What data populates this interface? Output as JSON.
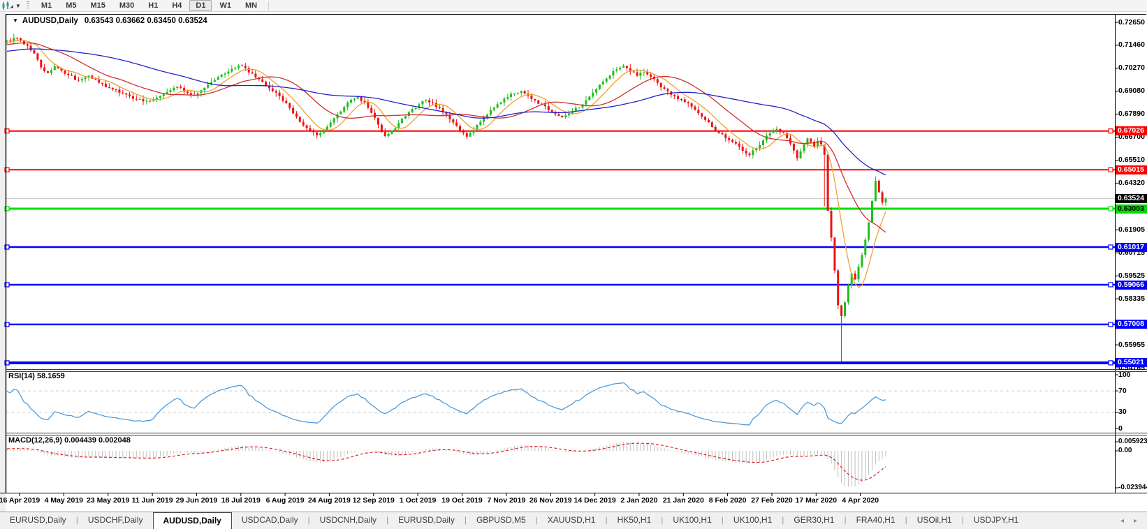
{
  "toolbar": {
    "chart_icon": "candlestick-chart-icon",
    "dropdown_icon": "chevron-down-icon",
    "timeframes": [
      "M1",
      "M5",
      "M15",
      "M30",
      "H1",
      "H4",
      "D1",
      "W1",
      "MN"
    ],
    "active_timeframe": "D1"
  },
  "chart": {
    "title_arrow": "▼",
    "symbol": "AUDUSD,Daily",
    "quote": "0.63543 0.63662 0.63450 0.63524",
    "price_axis": [
      "0.72650",
      "0.71460",
      "0.70270",
      "0.69080",
      "0.67890",
      "0.66700",
      "0.65510",
      "0.64320",
      "0.61905",
      "0.60715",
      "0.59525",
      "0.58335",
      "0.55955",
      "0.54765"
    ],
    "current_price_label": {
      "text": "0.63524",
      "value": 0.63524,
      "bg": "#000000",
      "fg": "#FFFFFF"
    },
    "line_labels": [
      {
        "text": "0.67026",
        "value": 0.67026,
        "bg": "#FF0000",
        "fg": "#FFFFFF"
      },
      {
        "text": "0.65015",
        "value": 0.65015,
        "bg": "#FF0000",
        "fg": "#FFFFFF"
      },
      {
        "text": "0.63003",
        "value": 0.63003,
        "bg": "#00DD00",
        "fg": "#000000"
      },
      {
        "text": "0.61017",
        "value": 0.61017,
        "bg": "#0000FF",
        "fg": "#FFFFFF"
      },
      {
        "text": "0.59066",
        "value": 0.59066,
        "bg": "#0000FF",
        "fg": "#FFFFFF"
      },
      {
        "text": "0.57008",
        "value": 0.57008,
        "bg": "#0000FF",
        "fg": "#FFFFFF"
      },
      {
        "text": "0.55021",
        "value": 0.55021,
        "bg": "#0000FF",
        "fg": "#FFFFFF"
      }
    ],
    "date_labels": [
      "16 Apr 2019",
      "4 May 2019",
      "23 May 2019",
      "11 Jun 2019",
      "29 Jun 2019",
      "18 Jul 2019",
      "6 Aug 2019",
      "24 Aug 2019",
      "12 Sep 2019",
      "1 Oct 2019",
      "19 Oct 2019",
      "7 Nov 2019",
      "26 Nov 2019",
      "14 Dec 2019",
      "2 Jan 2020",
      "21 Jan 2020",
      "8 Feb 2020",
      "27 Feb 2020",
      "17 Mar 2020",
      "4 Apr 2020"
    ]
  },
  "rsi": {
    "label": "RSI(14) 58.1659",
    "axis": [
      "100",
      "70",
      "30",
      "0"
    ],
    "level_lines": [
      70,
      30
    ],
    "line_color": "#4F9BD9"
  },
  "macd": {
    "label": "MACD(12,26,9) 0.004439 0.002048",
    "axis": [
      "0.005923",
      "0.00",
      "-0.023944"
    ],
    "bar_color": "#BDBDBD",
    "signal_color": "#E02020"
  },
  "tabs": {
    "items": [
      "EURUSD,Daily",
      "USDCHF,Daily",
      "AUDUSD,Daily",
      "USDCAD,Daily",
      "USDCNH,Daily",
      "EURUSD,Daily",
      "GBPUSD,M5",
      "XAUUSD,H1",
      "HK50,H1",
      "UK100,H1",
      "UK100,H1",
      "GER30,H1",
      "FRA40,H1",
      "USOil,H1",
      "USDJPY,H1"
    ],
    "active_index": 2,
    "nav_icons": [
      "left-arrow-icon",
      "right-arrow-icon"
    ]
  },
  "chart_data": {
    "type": "candlestick",
    "symbol": "AUDUSD",
    "timeframe": "Daily",
    "ohlc_current": {
      "open": 0.63543,
      "high": 0.63662,
      "low": 0.6345,
      "close": 0.63524
    },
    "price_axis_range": [
      0.54765,
      0.7265
    ],
    "horizontal_lines": [
      {
        "value": 0.67026,
        "color": "#FF0000",
        "width": 2
      },
      {
        "value": 0.65015,
        "color": "#FF0000",
        "width": 2
      },
      {
        "value": 0.63003,
        "color": "#00DD00",
        "width": 3
      },
      {
        "value": 0.61017,
        "color": "#0000FF",
        "width": 2.5
      },
      {
        "value": 0.59066,
        "color": "#0000FF",
        "width": 2.5
      },
      {
        "value": 0.57008,
        "color": "#0000FF",
        "width": 2.5
      },
      {
        "value": 0.55021,
        "color": "#0000FF",
        "width": 4
      }
    ],
    "current_price_line": {
      "value": 0.63524,
      "color": "#C8C8C8"
    },
    "candle_count": 259,
    "up_color": "#1FBE1F",
    "down_color": "#EE1111",
    "close_anchors": [
      [
        0,
        0.717
      ],
      [
        2,
        0.7183
      ],
      [
        4,
        0.717
      ],
      [
        6,
        0.7142
      ],
      [
        8,
        0.7105
      ],
      [
        10,
        0.703
      ],
      [
        12,
        0.7
      ],
      [
        14,
        0.7038
      ],
      [
        16,
        0.7015
      ],
      [
        18,
        0.6992
      ],
      [
        21,
        0.6962
      ],
      [
        24,
        0.6988
      ],
      [
        27,
        0.6952
      ],
      [
        30,
        0.6928
      ],
      [
        33,
        0.6902
      ],
      [
        36,
        0.6882
      ],
      [
        39,
        0.6865
      ],
      [
        42,
        0.6858
      ],
      [
        45,
        0.6882
      ],
      [
        48,
        0.6912
      ],
      [
        50,
        0.6932
      ],
      [
        52,
        0.6908
      ],
      [
        55,
        0.6885
      ],
      [
        58,
        0.6928
      ],
      [
        61,
        0.6968
      ],
      [
        64,
        0.7002
      ],
      [
        66,
        0.7025
      ],
      [
        68,
        0.7042
      ],
      [
        70,
        0.7028
      ],
      [
        72,
        0.6998
      ],
      [
        74,
        0.6968
      ],
      [
        76,
        0.6938
      ],
      [
        78,
        0.6908
      ],
      [
        80,
        0.6882
      ],
      [
        82,
        0.6848
      ],
      [
        84,
        0.6792
      ],
      [
        86,
        0.6752
      ],
      [
        88,
        0.6715
      ],
      [
        91,
        0.6682
      ],
      [
        93,
        0.6708
      ],
      [
        95,
        0.6748
      ],
      [
        97,
        0.6788
      ],
      [
        99,
        0.6828
      ],
      [
        101,
        0.6862
      ],
      [
        103,
        0.688
      ],
      [
        105,
        0.6852
      ],
      [
        107,
        0.6798
      ],
      [
        109,
        0.6735
      ],
      [
        111,
        0.6675
      ],
      [
        113,
        0.6705
      ],
      [
        115,
        0.6742
      ],
      [
        117,
        0.6782
      ],
      [
        119,
        0.6815
      ],
      [
        121,
        0.6842
      ],
      [
        123,
        0.6862
      ],
      [
        125,
        0.6845
      ],
      [
        127,
        0.6818
      ],
      [
        129,
        0.6788
      ],
      [
        131,
        0.6748
      ],
      [
        133,
        0.6705
      ],
      [
        135,
        0.6675
      ],
      [
        137,
        0.6708
      ],
      [
        139,
        0.6748
      ],
      [
        141,
        0.6788
      ],
      [
        143,
        0.6822
      ],
      [
        145,
        0.6852
      ],
      [
        147,
        0.6878
      ],
      [
        149,
        0.6898
      ],
      [
        151,
        0.6908
      ],
      [
        153,
        0.6888
      ],
      [
        155,
        0.6862
      ],
      [
        157,
        0.6838
      ],
      [
        159,
        0.681
      ],
      [
        161,
        0.6788
      ],
      [
        163,
        0.6772
      ],
      [
        165,
        0.6795
      ],
      [
        167,
        0.682
      ],
      [
        169,
        0.6842
      ],
      [
        171,
        0.6878
      ],
      [
        173,
        0.692
      ],
      [
        175,
        0.6958
      ],
      [
        177,
        0.6992
      ],
      [
        179,
        0.7022
      ],
      [
        181,
        0.7038
      ],
      [
        183,
        0.7012
      ],
      [
        185,
        0.6988
      ],
      [
        187,
        0.7008
      ],
      [
        189,
        0.6982
      ],
      [
        191,
        0.695
      ],
      [
        193,
        0.692
      ],
      [
        195,
        0.6892
      ],
      [
        197,
        0.6868
      ],
      [
        199,
        0.6852
      ],
      [
        201,
        0.6828
      ],
      [
        203,
        0.6795
      ],
      [
        205,
        0.6758
      ],
      [
        207,
        0.6722
      ],
      [
        209,
        0.669
      ],
      [
        211,
        0.6668
      ],
      [
        213,
        0.6645
      ],
      [
        215,
        0.6622
      ],
      [
        216,
        0.6598
      ],
      [
        218,
        0.6578
      ],
      [
        220,
        0.6615
      ],
      [
        222,
        0.6655
      ],
      [
        224,
        0.669
      ],
      [
        226,
        0.6712
      ],
      [
        228,
        0.6692
      ],
      [
        229,
        0.6665
      ],
      [
        230,
        0.6635
      ],
      [
        231,
        0.66
      ],
      [
        232,
        0.656
      ],
      [
        233,
        0.6595
      ],
      [
        234,
        0.6635
      ],
      [
        235,
        0.6662
      ],
      [
        236,
        0.6648
      ],
      [
        237,
        0.6622
      ],
      [
        238,
        0.6652
      ],
      [
        239,
        0.6632
      ],
      [
        240,
        0.658
      ],
      [
        241,
        0.629
      ],
      [
        242,
        0.615
      ],
      [
        243,
        0.598
      ],
      [
        244,
        0.58
      ],
      [
        245,
        0.5745
      ],
      [
        246,
        0.5815
      ],
      [
        247,
        0.5905
      ],
      [
        248,
        0.5965
      ],
      [
        249,
        0.5935
      ],
      [
        250,
        0.6
      ],
      [
        251,
        0.606
      ],
      [
        252,
        0.614
      ],
      [
        253,
        0.623
      ],
      [
        254,
        0.634
      ],
      [
        255,
        0.6445
      ],
      [
        256,
        0.6385
      ],
      [
        257,
        0.6332
      ],
      [
        258,
        0.6352
      ]
    ],
    "special_candles": [
      {
        "i": 2,
        "high": 0.7206
      },
      {
        "i": 240,
        "low": 0.6313
      },
      {
        "i": 245,
        "low": 0.551
      },
      {
        "i": 255,
        "high": 0.6468
      }
    ],
    "moving_averages": [
      {
        "period": 8,
        "color": "#F0A030"
      },
      {
        "period": 21,
        "color": "#D03030"
      },
      {
        "period": 55,
        "color": "#2222CC"
      }
    ],
    "rsi": {
      "period": 14,
      "current": 58.1659,
      "levels": [
        70,
        30
      ],
      "scale": [
        0,
        100
      ]
    },
    "macd": {
      "fast": 12,
      "slow": 26,
      "signal": 9,
      "current": [
        0.004439,
        0.002048
      ],
      "scale": [
        -0.023944,
        0.005923
      ]
    }
  }
}
